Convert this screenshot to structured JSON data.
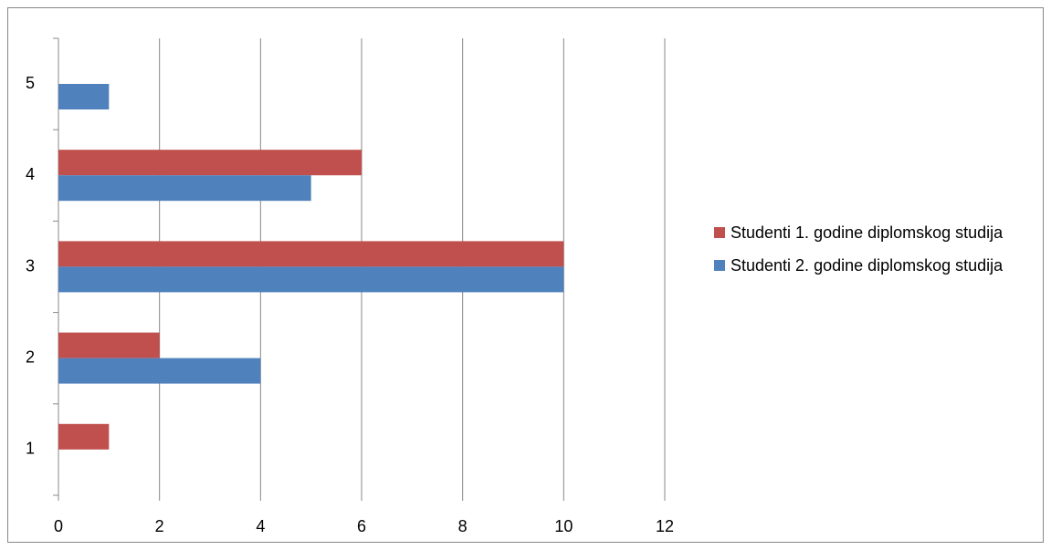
{
  "chart_data": {
    "type": "bar",
    "orientation": "horizontal",
    "categories": [
      "1",
      "2",
      "3",
      "4",
      "5"
    ],
    "series": [
      {
        "name": "Studenti 1. godine diplomskog studija",
        "color": "#c0504d",
        "values": [
          1,
          2,
          10,
          6,
          0
        ]
      },
      {
        "name": "Studenti 2. godine diplomskog studija",
        "color": "#4f81bd",
        "values": [
          0,
          4,
          10,
          5,
          1
        ]
      }
    ],
    "xlim": [
      0,
      12
    ],
    "xticks": [
      0,
      2,
      4,
      6,
      8,
      10,
      12
    ],
    "grid": true,
    "legend": "right"
  }
}
